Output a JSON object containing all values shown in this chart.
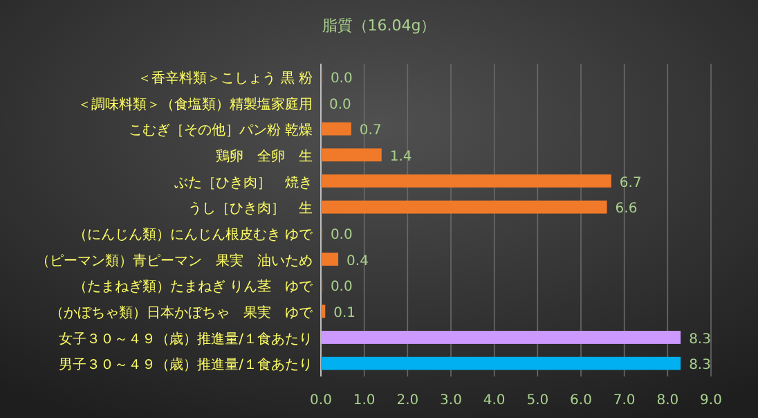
{
  "chart_data": {
    "type": "bar",
    "orientation": "horizontal",
    "title": "脂質（16.04g）",
    "categories": [
      "＜香辛料類＞こしょう 黒 粉",
      "＜調味料類＞（食塩類）精製塩家庭用",
      "こむぎ［その他］パン粉 乾燥",
      "鶏卵　全卵　生",
      "ぶた［ひき肉］　焼き",
      "うし［ひき肉］　生",
      "（にんじん類）にんじん根皮むき ゆで",
      "（ピーマン類）青ピーマン　果実　油いため",
      "（たまねぎ類）たまねぎ りん茎　ゆで",
      "（かぼちゃ類）日本かぼちゃ　果実　ゆで",
      "女子３０～４９（歳）推進量/１食あたり",
      "男子３０～４９（歳）推進量/１食あたり"
    ],
    "values": [
      0.03,
      0.0,
      0.7,
      1.4,
      6.7,
      6.6,
      0.03,
      0.4,
      0.03,
      0.1,
      8.3,
      8.3
    ],
    "value_labels": [
      "0.0",
      "0.0",
      "0.7",
      "1.4",
      "6.7",
      "6.6",
      "0.0",
      "0.4",
      "0.0",
      "0.1",
      "8.3",
      "8.3"
    ],
    "colors": [
      "#f07a2a",
      "#f07a2a",
      "#f07a2a",
      "#f07a2a",
      "#f07a2a",
      "#f07a2a",
      "#f07a2a",
      "#f07a2a",
      "#f07a2a",
      "#f07a2a",
      "#cc99ff",
      "#00b0f0"
    ],
    "xlim": [
      0,
      9
    ],
    "xticks": [
      {
        "value": 0,
        "label": "0.0"
      },
      {
        "value": 1,
        "label": "1.0"
      },
      {
        "value": 2,
        "label": "2.0"
      },
      {
        "value": 3,
        "label": "3.0"
      },
      {
        "value": 4,
        "label": "4.0"
      },
      {
        "value": 5,
        "label": "5.0"
      },
      {
        "value": 6,
        "label": "6.0"
      },
      {
        "value": 7,
        "label": "7.0"
      },
      {
        "value": 8,
        "label": "8.0"
      },
      {
        "value": 9,
        "label": "9.0"
      }
    ],
    "grid": "x"
  }
}
